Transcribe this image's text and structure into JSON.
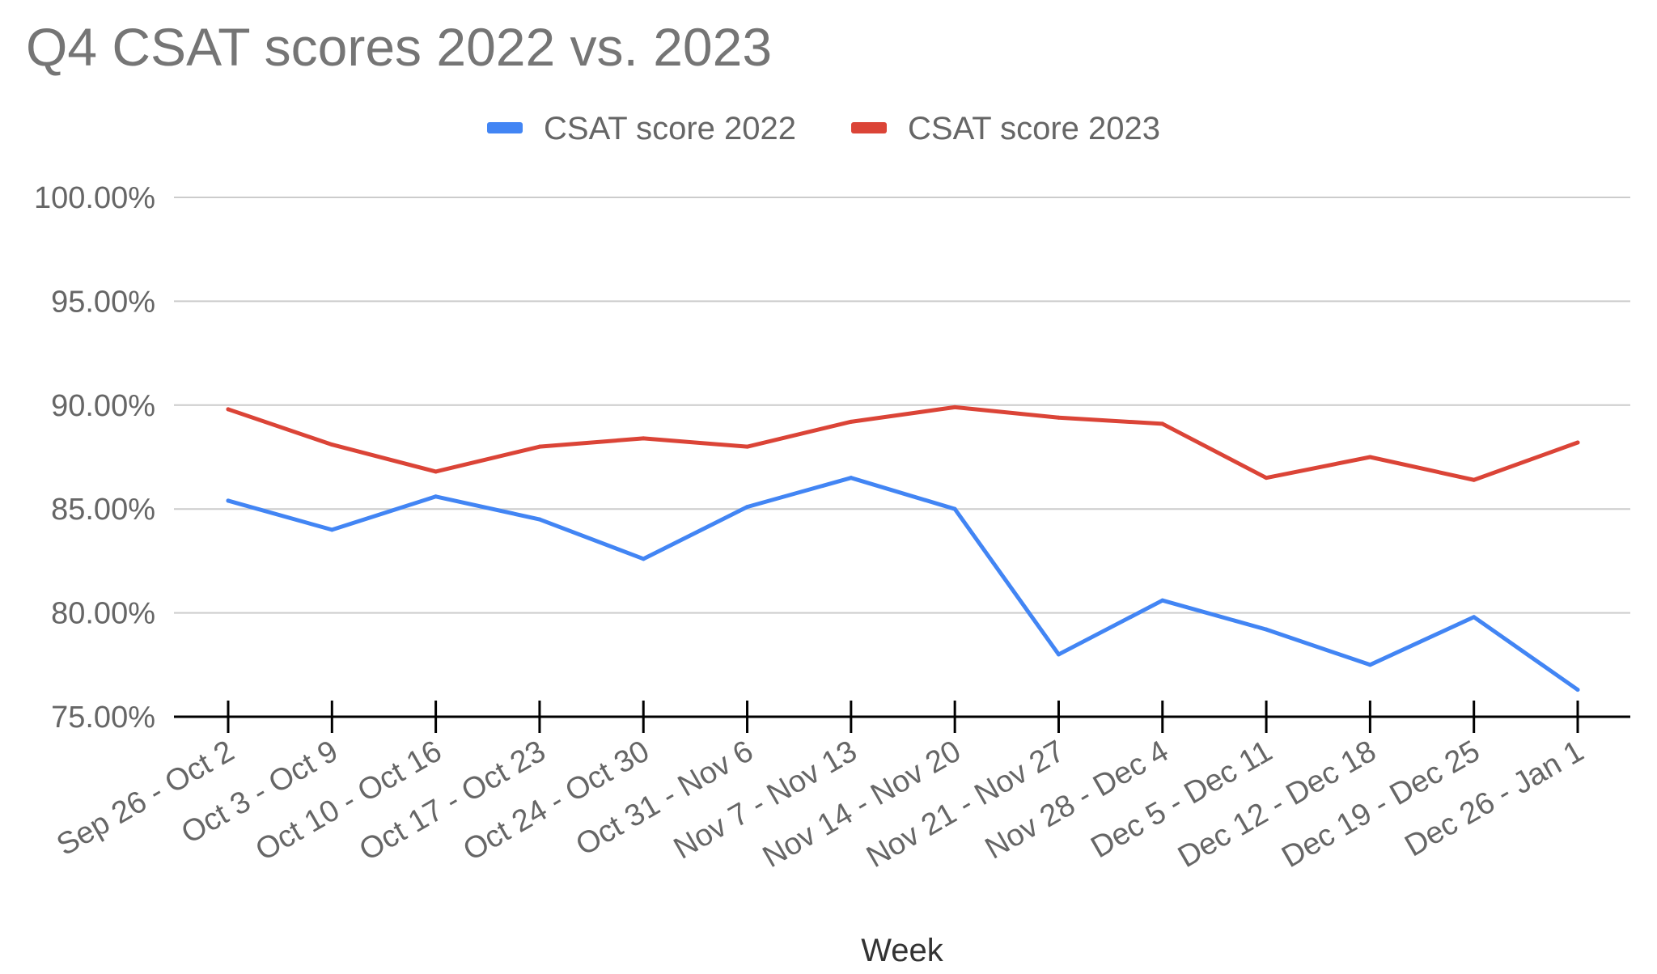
{
  "chart_data": {
    "type": "line",
    "title": "Q4 CSAT scores 2022 vs. 2023",
    "xlabel": "Week",
    "ylabel": "",
    "ylim": [
      75,
      100
    ],
    "yticks": [
      75,
      80,
      85,
      90,
      95,
      100
    ],
    "ytick_labels": [
      "75.00%",
      "80.00%",
      "85.00%",
      "90.00%",
      "95.00%",
      "100.00%"
    ],
    "grid": true,
    "legend_position": "top",
    "categories": [
      "Sep 26 - Oct 2",
      "Oct 3 - Oct 9",
      "Oct 10 - Oct 16",
      "Oct 17 - Oct 23",
      "Oct 24 - Oct 30",
      "Oct 31 - Nov 6",
      "Nov 7 - Nov 13",
      "Nov 14 - Nov 20",
      "Nov 21 - Nov 27",
      "Nov 28 - Dec 4",
      "Dec 5 - Dec 11",
      "Dec 12 - Dec 18",
      "Dec 19 - Dec 25",
      "Dec 26 - Jan 1"
    ],
    "series": [
      {
        "name": "CSAT score 2022",
        "color": "#4285f4",
        "values": [
          85.4,
          84.0,
          85.6,
          84.5,
          82.6,
          85.1,
          86.5,
          85.0,
          78.0,
          80.6,
          79.2,
          77.5,
          79.8,
          76.3
        ]
      },
      {
        "name": "CSAT score 2023",
        "color": "#db4437",
        "values": [
          89.8,
          88.1,
          86.8,
          88.0,
          88.4,
          88.0,
          89.2,
          89.9,
          89.4,
          89.1,
          86.5,
          87.5,
          86.4,
          88.2
        ]
      }
    ]
  },
  "colors": {
    "gridline": "#cccccc",
    "axis": "#000000",
    "text": "#666666"
  }
}
